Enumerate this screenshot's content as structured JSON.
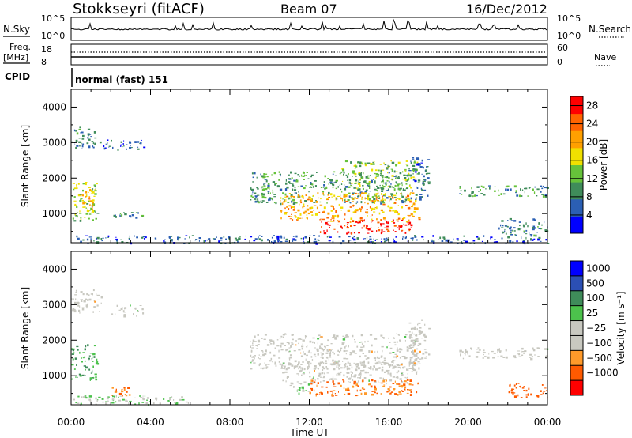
{
  "header": {
    "station": "Stokkseyri (fitACF)",
    "beam": "Beam 07",
    "date": "16/Dec/2012"
  },
  "noise_panel": {
    "left_label": "N.Sky",
    "left_ticks": [
      "10^5",
      "10^0"
    ],
    "right_ticks": [
      "10^5",
      "10^0"
    ],
    "right_label": "N.Search"
  },
  "freq_panel": {
    "left_label": "Freq.",
    "left_unit": "[MHz]",
    "left_ticks": [
      "18",
      "8"
    ],
    "right_ticks": [
      "60",
      "0"
    ],
    "right_label": "Nave"
  },
  "cpid": {
    "label": "CPID",
    "mode": "normal (fast) 151"
  },
  "colors": {
    "power_scale": [
      "#0000ff",
      "#2b5fb4",
      "#3f8c5a",
      "#66c23a",
      "#f0e000",
      "#ffa000",
      "#ff6400",
      "#ff0000"
    ],
    "velocity_scale": [
      "#ff0000",
      "#ff5a00",
      "#ff9a2a",
      "#c8c8c0",
      "#c8c8c0",
      "#4cc24c",
      "#3f8c5a",
      "#2b4fb4",
      "#0000ff"
    ],
    "ground_scatter": "#c8c8c0"
  },
  "chart_data": [
    {
      "type": "heatmap",
      "title": "Power",
      "xlabel": "",
      "ylabel": "Slant Range [km]",
      "x_ticks": [
        "00:00",
        "04:00",
        "08:00",
        "12:00",
        "16:00",
        "20:00",
        "00:00"
      ],
      "xlim_hours": [
        0,
        24
      ],
      "ylim": [
        180,
        4500
      ],
      "y_ticks": [
        1000,
        2000,
        3000,
        4000
      ],
      "colorbar": {
        "label": "Power [dB]",
        "range": [
          0,
          30
        ],
        "ticks": [
          4,
          8,
          12,
          16,
          20,
          24,
          28
        ]
      },
      "regions": [
        {
          "t0": 0.0,
          "t1": 1.2,
          "r0": 2800,
          "r1": 3450,
          "value": 8
        },
        {
          "t0": 0.0,
          "t1": 1.3,
          "r0": 800,
          "r1": 1900,
          "value": 14
        },
        {
          "t0": 0.5,
          "t1": 1.1,
          "r0": 1100,
          "r1": 1700,
          "value": 19
        },
        {
          "t0": 1.4,
          "t1": 3.7,
          "r0": 2800,
          "r1": 3100,
          "value": 6
        },
        {
          "t0": 2.0,
          "t1": 3.6,
          "r0": 900,
          "r1": 1050,
          "value": 9
        },
        {
          "t0": 9.0,
          "t1": 17.0,
          "r0": 1300,
          "r1": 2200,
          "value": 10
        },
        {
          "t0": 10.5,
          "t1": 17.5,
          "r0": 800,
          "r1": 1600,
          "value": 20
        },
        {
          "t0": 12.5,
          "t1": 17.3,
          "r0": 450,
          "r1": 850,
          "value": 28
        },
        {
          "t0": 13.5,
          "t1": 17.5,
          "r0": 1700,
          "r1": 2500,
          "value": 13
        },
        {
          "t0": 17.0,
          "t1": 18.0,
          "r0": 1400,
          "r1": 2600,
          "value": 7
        },
        {
          "t0": 19.5,
          "t1": 24.0,
          "r0": 1500,
          "r1": 1800,
          "value": 10
        },
        {
          "t0": 21.5,
          "t1": 24.0,
          "r0": 400,
          "r1": 900,
          "value": 8
        },
        {
          "t0": 0.0,
          "t1": 24.0,
          "r0": 180,
          "r1": 400,
          "value": 6
        }
      ]
    },
    {
      "type": "heatmap",
      "title": "Velocity",
      "xlabel": "Time UT",
      "ylabel": "Slant Range [km]",
      "x_ticks": [
        "00:00",
        "04:00",
        "08:00",
        "12:00",
        "16:00",
        "20:00",
        "00:00"
      ],
      "xlim_hours": [
        0,
        24
      ],
      "ylim": [
        180,
        4500
      ],
      "y_ticks": [
        1000,
        2000,
        3000,
        4000
      ],
      "colorbar": {
        "label": "Velocity [m s⁻¹]",
        "ticks": [
          "1000",
          "500",
          "100",
          "25",
          "−25",
          "−100",
          "−500",
          "−1000"
        ]
      },
      "regions": [
        {
          "t0": 0.0,
          "t1": 1.5,
          "r0": 2800,
          "r1": 3450,
          "value": 0
        },
        {
          "t0": 0.0,
          "t1": 1.3,
          "r0": 900,
          "r1": 1900,
          "value": 300
        },
        {
          "t0": 2.0,
          "t1": 3.6,
          "r0": 2700,
          "r1": 3000,
          "value": 0
        },
        {
          "t0": 9.0,
          "t1": 17.5,
          "r0": 1200,
          "r1": 2200,
          "value": 0
        },
        {
          "t0": 10.5,
          "t1": 17.5,
          "r0": 800,
          "r1": 1400,
          "value": 0
        },
        {
          "t0": 12.0,
          "t1": 17.5,
          "r0": 450,
          "r1": 900,
          "value": -300
        },
        {
          "t0": 11.0,
          "t1": 12.0,
          "r0": 500,
          "r1": 800,
          "value": 80
        },
        {
          "t0": 17.0,
          "t1": 18.0,
          "r0": 1300,
          "r1": 2600,
          "value": 0
        },
        {
          "t0": 19.5,
          "t1": 24.0,
          "r0": 1500,
          "r1": 1800,
          "value": 0
        },
        {
          "t0": 22.0,
          "t1": 24.0,
          "r0": 400,
          "r1": 800,
          "value": -400
        },
        {
          "t0": 0.0,
          "t1": 6.0,
          "r0": 200,
          "r1": 450,
          "value": 60
        },
        {
          "t0": 2.0,
          "t1": 3.0,
          "r0": 450,
          "r1": 700,
          "value": -300
        }
      ]
    }
  ]
}
